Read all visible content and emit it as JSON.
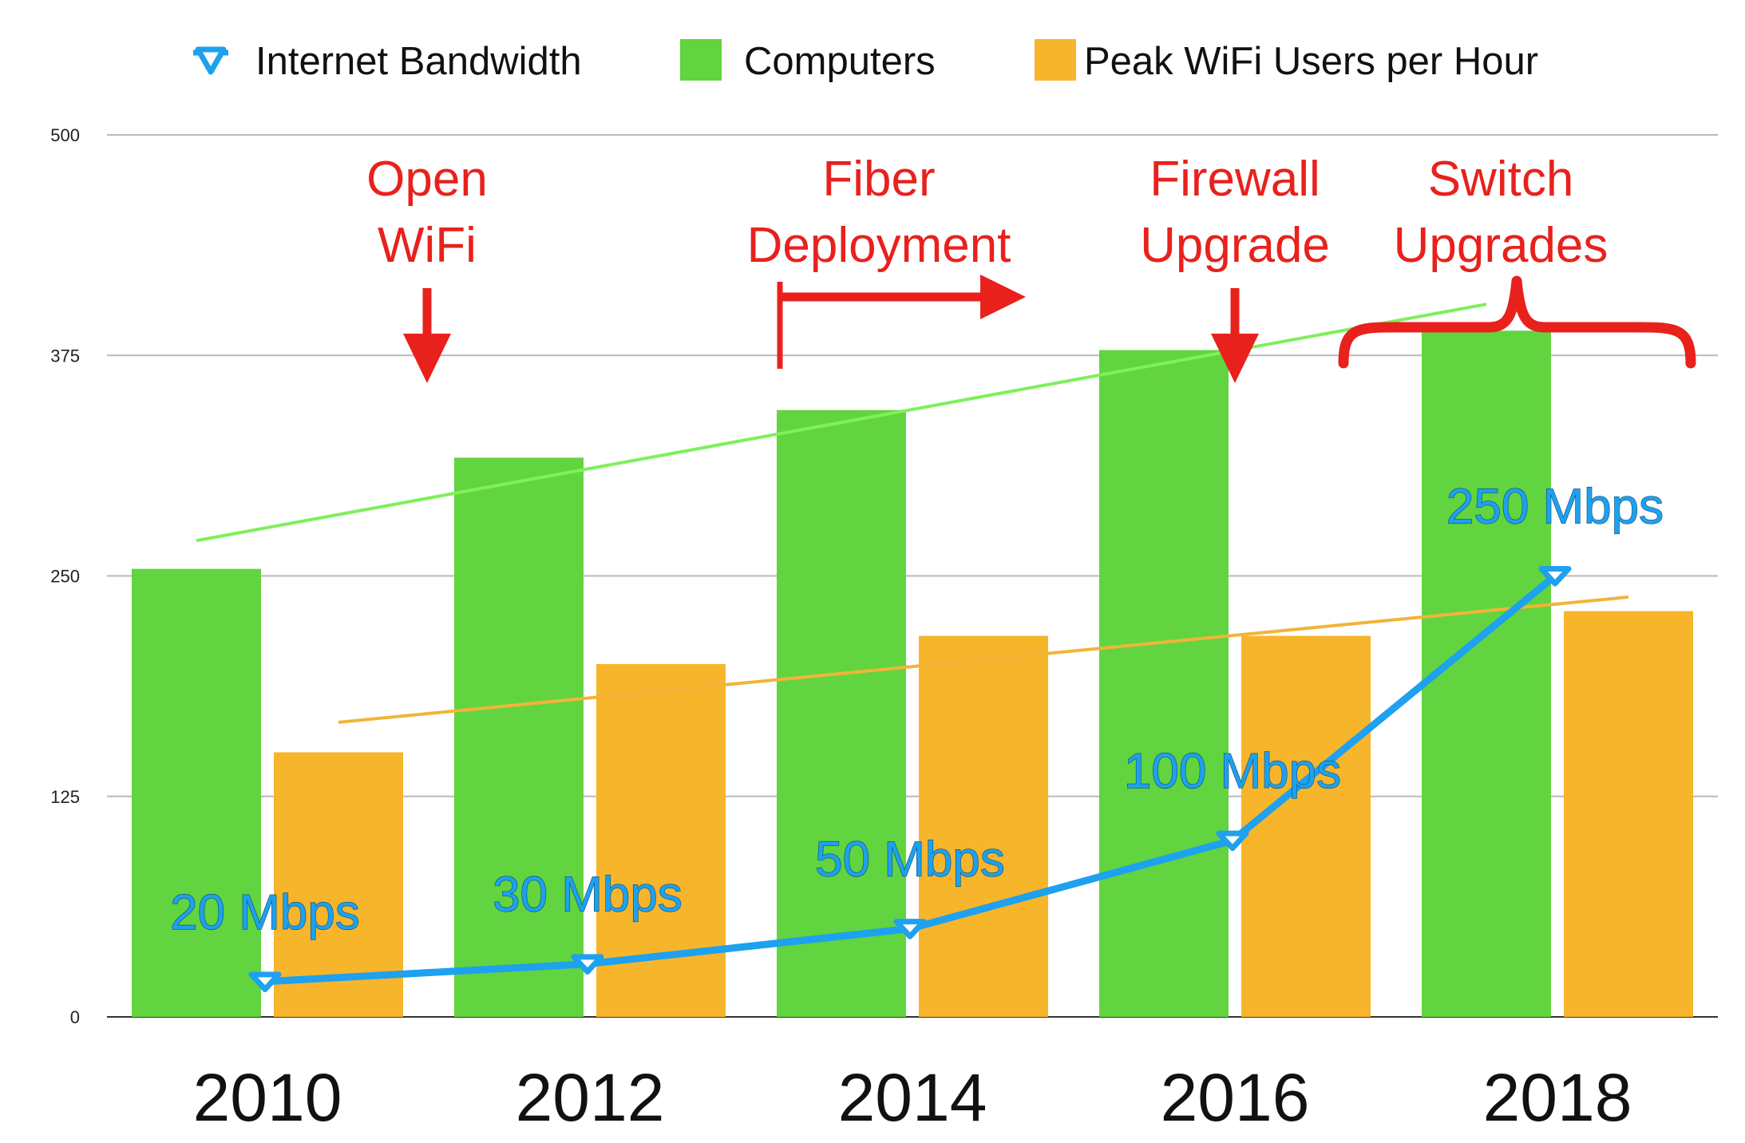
{
  "chart_data": {
    "type": "bar",
    "categories": [
      "2010",
      "2012",
      "2014",
      "2016",
      "2018"
    ],
    "ylim": [
      0,
      500
    ],
    "yticks": [
      0,
      125,
      250,
      375,
      500
    ],
    "grid": true,
    "legend_placement": "top-center",
    "series": [
      {
        "name": "Computers",
        "kind": "bar",
        "color": "#62d43f",
        "values": [
          254,
          317,
          344,
          378,
          389
        ]
      },
      {
        "name": "Peak WiFi Users per Hour",
        "kind": "bar",
        "color": "#f7b52c",
        "values": [
          150,
          200,
          216,
          216,
          230
        ]
      },
      {
        "name": "Internet Bandwidth",
        "kind": "line",
        "color": "#1ea1ee",
        "marker": "triangle-down",
        "values": [
          20,
          30,
          50,
          100,
          250
        ],
        "data_labels": [
          "20 Mbps",
          "30 Mbps",
          "50 Mbps",
          "100 Mbps",
          "250 Mbps"
        ]
      }
    ],
    "trendlines": [
      {
        "series": "Computers",
        "color": "#7ef05a",
        "from": {
          "x": "2010",
          "y": 270
        },
        "to": {
          "x": "2018",
          "y": 404
        }
      },
      {
        "series": "Peak WiFi Users per Hour",
        "color": "#f2b437",
        "from": {
          "x": "2010",
          "y": 167
        },
        "to": {
          "x": "2018",
          "y": 238
        }
      }
    ],
    "annotations": [
      {
        "lines": [
          "Open",
          "WiFi"
        ],
        "color": "#e8211d"
      },
      {
        "lines": [
          "Fiber",
          "Deployment"
        ],
        "color": "#e8211d"
      },
      {
        "lines": [
          "Firewall",
          "Upgrade"
        ],
        "color": "#e8211d"
      },
      {
        "lines": [
          "Switch",
          "Upgrades"
        ],
        "color": "#e8211d"
      }
    ]
  }
}
